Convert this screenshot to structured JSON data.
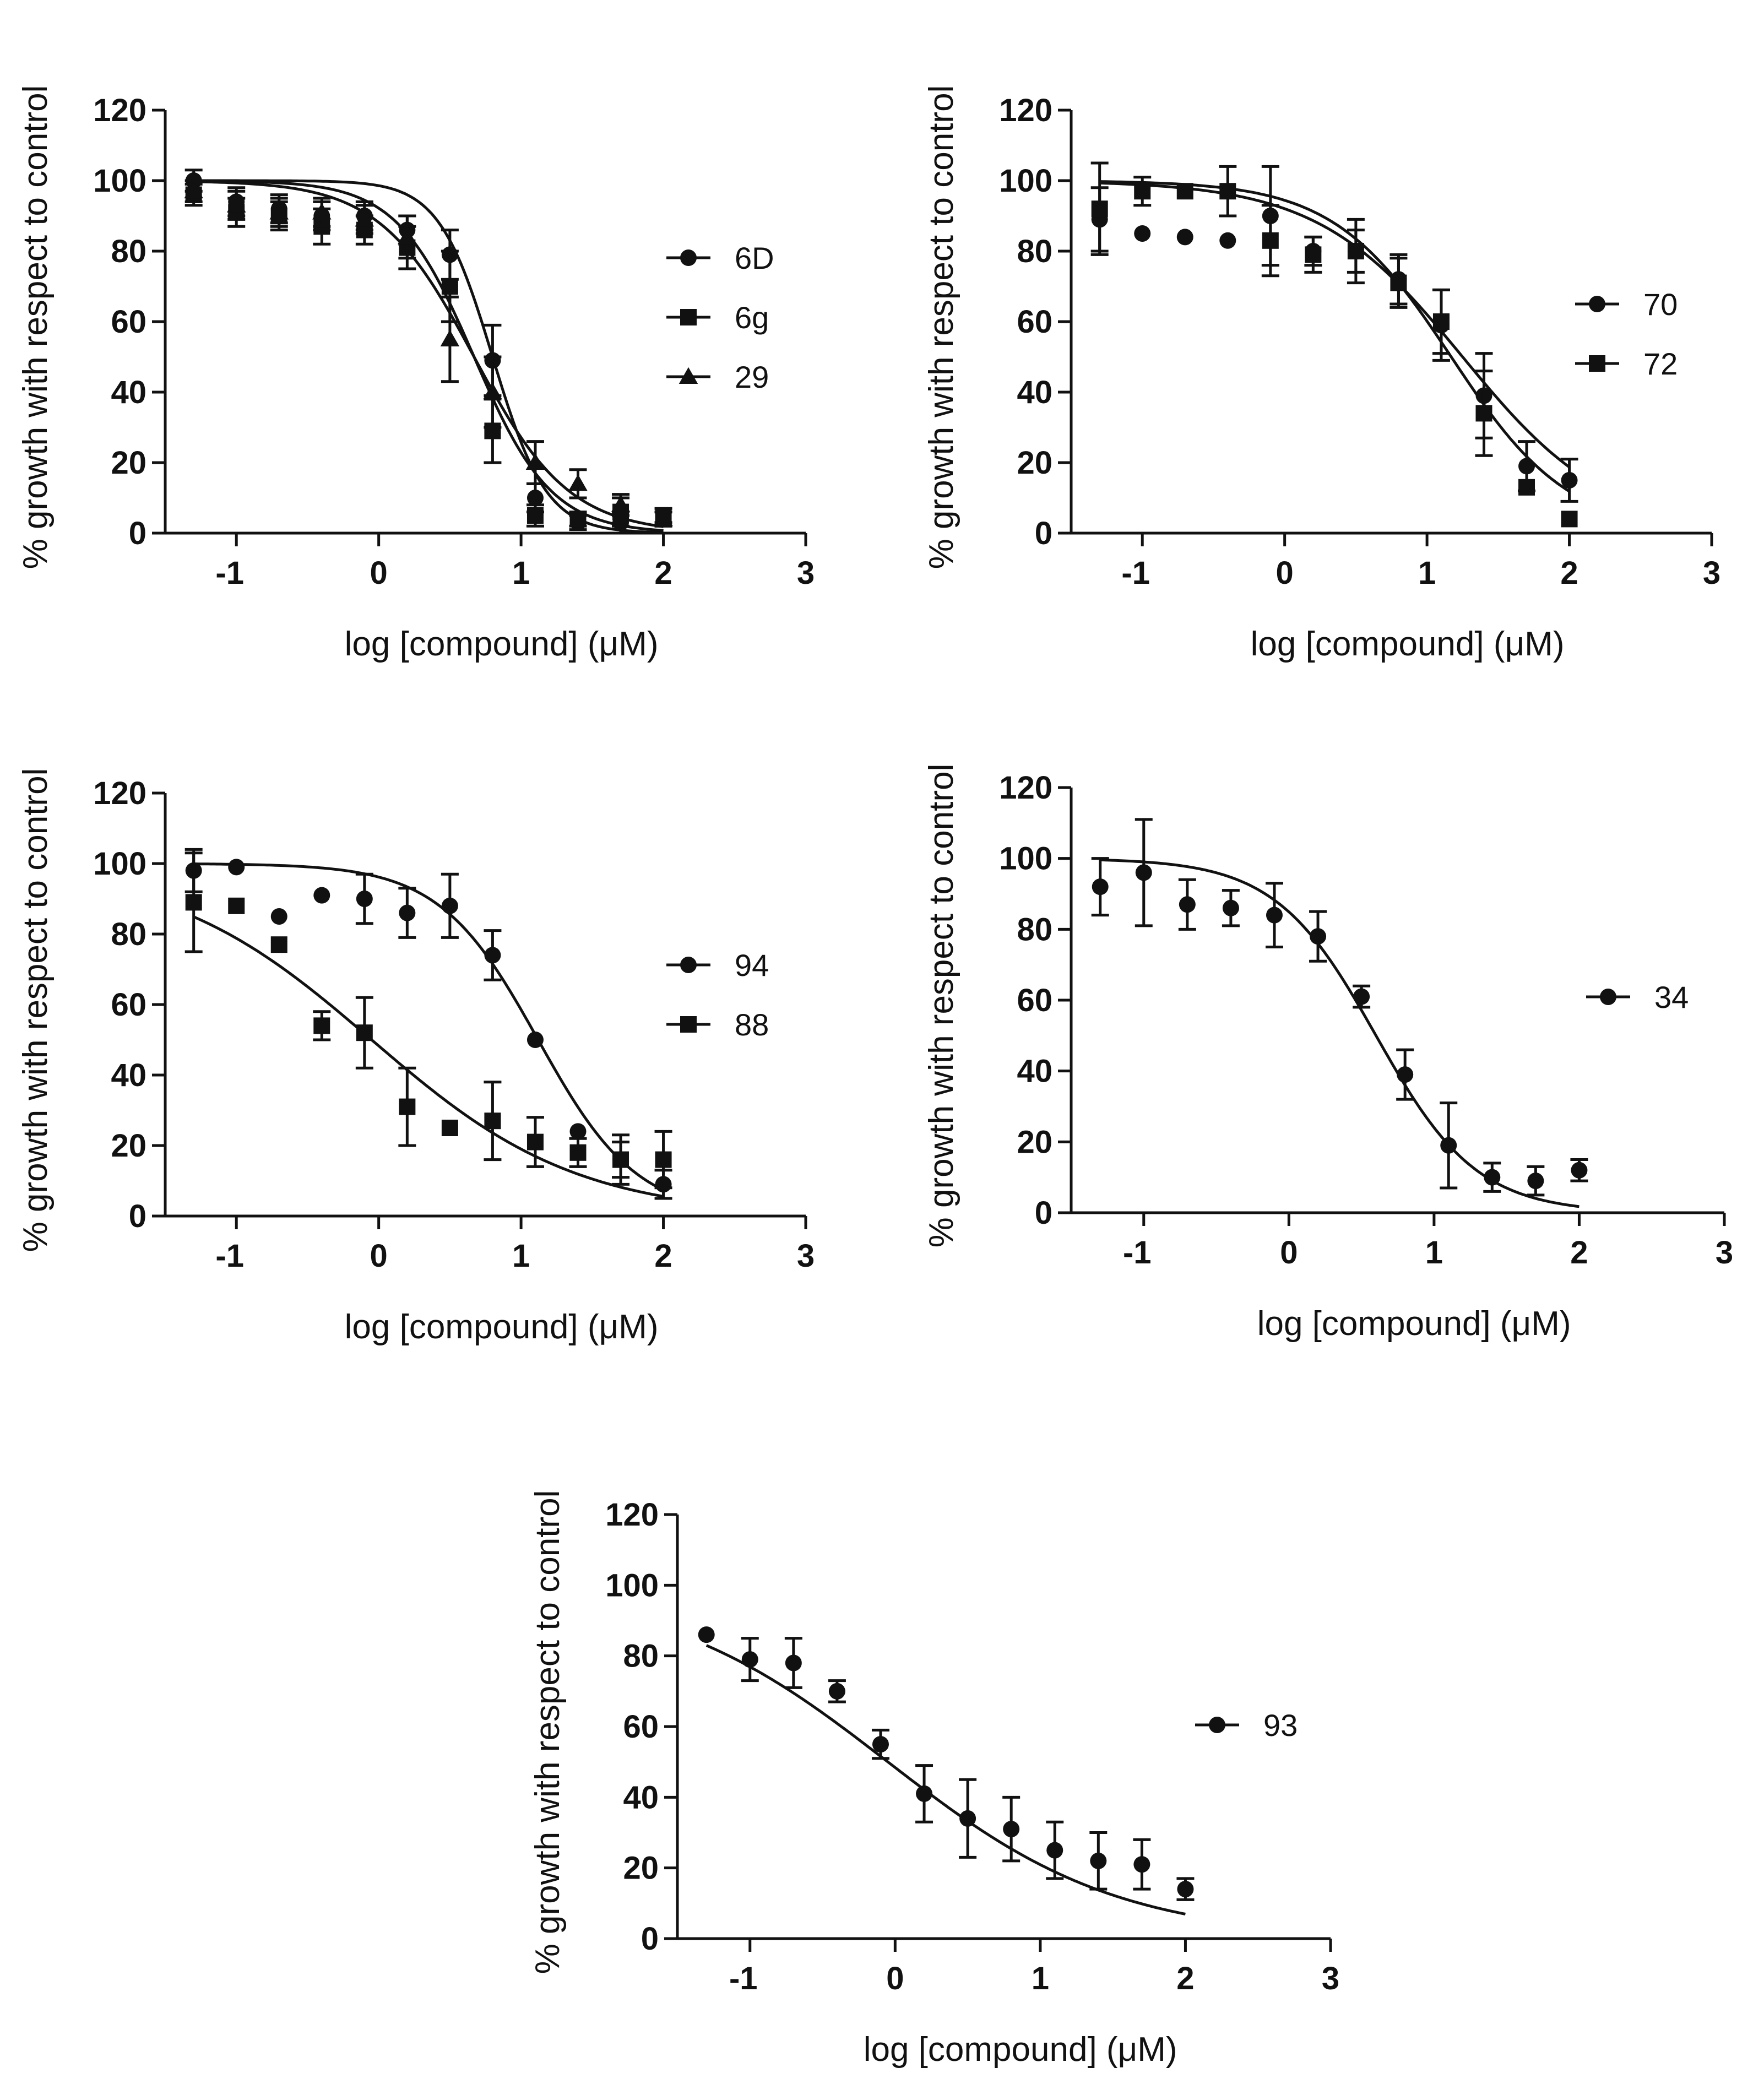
{
  "chart_data": [
    {
      "type": "scatter",
      "title": "",
      "xlabel": "log [compound] (μM)",
      "ylabel": "% growth with respect to control",
      "xlim": [
        -1.5,
        3
      ],
      "ylim": [
        0,
        120
      ],
      "xticks": [
        -1,
        0,
        1,
        2,
        3
      ],
      "yticks": [
        0,
        20,
        40,
        60,
        80,
        100,
        120
      ],
      "xtick_labels": [
        "-1",
        "0",
        "1",
        "2",
        "3"
      ],
      "ytick_labels": [
        "0",
        "20",
        "40",
        "60",
        "80",
        "100",
        "120"
      ],
      "legend": "right",
      "series": [
        {
          "name": "6D",
          "marker": "circle",
          "x": [
            -1.3,
            -1.0,
            -0.7,
            -0.4,
            -0.1,
            0.2,
            0.5,
            0.8,
            1.1,
            1.4,
            1.7,
            2.0
          ],
          "y": [
            100,
            94,
            92,
            90,
            90,
            86,
            79,
            49,
            10,
            3,
            3,
            4
          ],
          "err": [
            3,
            4,
            4,
            4,
            4,
            4,
            7,
            10,
            4,
            2,
            3,
            2
          ],
          "fit": {
            "top": 100,
            "bottom": 0,
            "logec50": 0.8,
            "hill": 2.3
          }
        },
        {
          "name": "6g",
          "marker": "square",
          "x": [
            -1.3,
            -1.0,
            -0.7,
            -0.4,
            -0.1,
            0.2,
            0.5,
            0.8,
            1.1,
            1.4,
            1.7,
            2.0
          ],
          "y": [
            96,
            91,
            90,
            87,
            86,
            81,
            70,
            29,
            5,
            4,
            6,
            5
          ],
          "err": [
            3,
            4,
            4,
            5,
            4,
            6,
            10,
            9,
            3,
            2,
            4,
            2
          ],
          "fit": {
            "top": 100,
            "bottom": 0,
            "logec50": 0.67,
            "hill": 1.6
          }
        },
        {
          "name": "29",
          "marker": "triangle",
          "x": [
            -1.3,
            -1.0,
            -0.7,
            -0.4,
            -0.1,
            0.2,
            0.5,
            0.8,
            1.1,
            1.4,
            1.7,
            2.0
          ],
          "y": [
            97,
            93,
            91,
            91,
            89,
            84,
            55,
            40,
            20,
            14,
            8,
            4
          ],
          "err": [
            3,
            4,
            4,
            4,
            4,
            6,
            12,
            10,
            6,
            4,
            3,
            2
          ],
          "fit": {
            "top": 100,
            "bottom": 0,
            "logec50": 0.67,
            "hill": 1.3
          }
        }
      ]
    },
    {
      "type": "scatter",
      "title": "",
      "xlabel": "log [compound] (μM)",
      "ylabel": "% growth with respect to control",
      "xlim": [
        -1.5,
        3
      ],
      "ylim": [
        0,
        120
      ],
      "xticks": [
        -1,
        0,
        1,
        2,
        3
      ],
      "yticks": [
        0,
        20,
        40,
        60,
        80,
        100,
        120
      ],
      "xtick_labels": [
        "-1",
        "0",
        "1",
        "2",
        "3"
      ],
      "ytick_labels": [
        "0",
        "20",
        "40",
        "60",
        "80",
        "100",
        "120"
      ],
      "legend": "right",
      "series": [
        {
          "name": "70",
          "marker": "circle",
          "x": [
            -1.3,
            -1.0,
            -0.7,
            -0.4,
            -0.1,
            0.2,
            0.5,
            0.8,
            1.1,
            1.4,
            1.7,
            2.0
          ],
          "y": [
            89,
            85,
            84,
            83,
            90,
            80,
            80,
            72,
            59,
            39,
            19,
            15
          ],
          "err": [
            9,
            0,
            0,
            0,
            14,
            4,
            9,
            7,
            10,
            12,
            7,
            6
          ],
          "fit": {
            "top": 100,
            "bottom": 0,
            "logec50": 1.25,
            "hill": 0.85
          }
        },
        {
          "name": "72",
          "marker": "square",
          "x": [
            -1.3,
            -1.0,
            -0.7,
            -0.4,
            -0.1,
            0.2,
            0.5,
            0.8,
            1.1,
            1.4,
            1.7,
            2.0
          ],
          "y": [
            92,
            97,
            97,
            97,
            83,
            79,
            80,
            71,
            60,
            34,
            13,
            4
          ],
          "err": [
            13,
            4,
            0,
            7,
            10,
            5,
            6,
            7,
            9,
            12,
            0,
            0
          ],
          "fit": {
            "top": 100,
            "bottom": 0,
            "logec50": 1.17,
            "hill": 1.05
          }
        }
      ]
    },
    {
      "type": "scatter",
      "title": "",
      "xlabel": "log [compound] (μM)",
      "ylabel": "% growth with respect to control",
      "xlim": [
        -1.5,
        3
      ],
      "ylim": [
        0,
        120
      ],
      "xticks": [
        -1,
        0,
        1,
        2,
        3
      ],
      "yticks": [
        0,
        20,
        40,
        60,
        80,
        100,
        120
      ],
      "xtick_labels": [
        "-1",
        "0",
        "1",
        "2",
        "3"
      ],
      "ytick_labels": [
        "0",
        "20",
        "40",
        "60",
        "80",
        "100",
        "120"
      ],
      "legend": "right",
      "series": [
        {
          "name": "94",
          "marker": "circle",
          "x": [
            -1.3,
            -1.0,
            -0.7,
            -0.4,
            -0.1,
            0.2,
            0.5,
            0.8,
            1.1,
            1.4,
            1.7,
            2.0
          ],
          "y": [
            98,
            99,
            85,
            91,
            90,
            86,
            88,
            74,
            50,
            24,
            16,
            9
          ],
          "err": [
            6,
            0,
            0,
            0,
            7,
            7,
            9,
            7,
            0,
            0,
            7,
            4
          ],
          "fit": {
            "top": 100,
            "bottom": 0,
            "logec50": 1.12,
            "hill": 1.25
          }
        },
        {
          "name": "88",
          "marker": "square",
          "x": [
            -1.3,
            -1.0,
            -0.7,
            -0.4,
            -0.1,
            0.2,
            0.5,
            0.8,
            1.1,
            1.4,
            1.7,
            2.0
          ],
          "y": [
            89,
            88,
            77,
            54,
            52,
            31,
            25,
            27,
            21,
            18,
            16,
            16
          ],
          "err": [
            14,
            0,
            0,
            4,
            10,
            11,
            0,
            11,
            7,
            4,
            5,
            8
          ],
          "fit": {
            "top": 100,
            "bottom": 0,
            "logec50": -0.05,
            "hill": 0.6
          }
        }
      ]
    },
    {
      "type": "scatter",
      "title": "",
      "xlabel": "log [compound] (μM)",
      "ylabel": "% growth with respect to control",
      "xlim": [
        -1.5,
        3
      ],
      "ylim": [
        0,
        120
      ],
      "xticks": [
        -1,
        0,
        1,
        2,
        3
      ],
      "yticks": [
        0,
        20,
        40,
        60,
        80,
        100,
        120
      ],
      "xtick_labels": [
        "-1",
        "0",
        "1",
        "2",
        "3"
      ],
      "ytick_labels": [
        "0",
        "20",
        "40",
        "60",
        "80",
        "100",
        "120"
      ],
      "legend": "right",
      "series": [
        {
          "name": "34",
          "marker": "circle",
          "x": [
            -1.3,
            -1.0,
            -0.7,
            -0.4,
            -0.1,
            0.2,
            0.5,
            0.8,
            1.1,
            1.4,
            1.7,
            2.0
          ],
          "y": [
            92,
            96,
            87,
            86,
            84,
            78,
            61,
            39,
            19,
            10,
            9,
            12
          ],
          "err": [
            8,
            15,
            7,
            5,
            9,
            7,
            3,
            7,
            12,
            4,
            4,
            3
          ],
          "fit": {
            "top": 100,
            "bottom": 0,
            "logec50": 0.6,
            "hill": 1.25
          }
        }
      ]
    },
    {
      "type": "scatter",
      "title": "",
      "xlabel": "log [compound] (μM)",
      "ylabel": "% growth with respect to control",
      "xlim": [
        -1.5,
        3
      ],
      "ylim": [
        0,
        120
      ],
      "xticks": [
        -1,
        0,
        1,
        2,
        3
      ],
      "yticks": [
        0,
        20,
        40,
        60,
        80,
        100,
        120
      ],
      "xtick_labels": [
        "-1",
        "0",
        "1",
        "2",
        "3"
      ],
      "ytick_labels": [
        "0",
        "20",
        "40",
        "60",
        "80",
        "100",
        "120"
      ],
      "legend": "right",
      "series": [
        {
          "name": "93",
          "marker": "circle",
          "x": [
            -1.3,
            -1.0,
            -0.7,
            -0.4,
            -0.1,
            0.2,
            0.5,
            0.8,
            1.1,
            1.4,
            1.7,
            2.0
          ],
          "y": [
            86,
            79,
            78,
            70,
            55,
            41,
            34,
            31,
            25,
            22,
            21,
            14
          ],
          "err": [
            0,
            6,
            7,
            3,
            4,
            8,
            11,
            9,
            8,
            8,
            7,
            3
          ],
          "fit": {
            "top": 100,
            "bottom": 0,
            "logec50": -0.05,
            "hill": 0.55
          }
        }
      ]
    }
  ]
}
